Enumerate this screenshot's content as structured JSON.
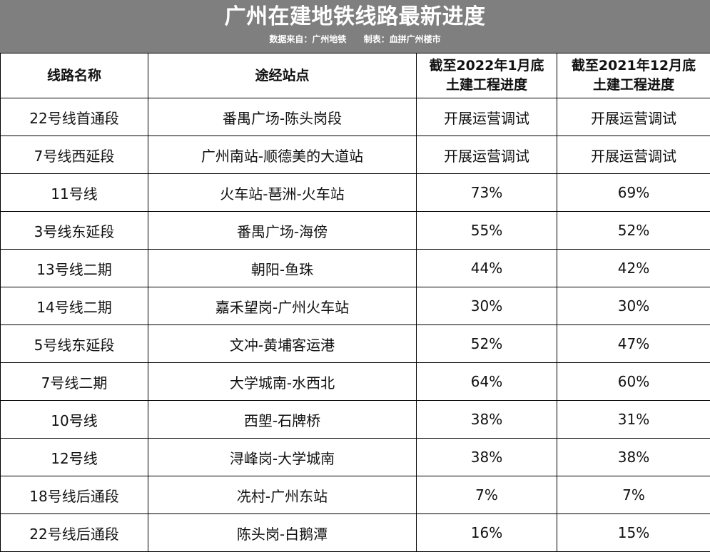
{
  "header": {
    "title": "广州在建地铁线路最新进度",
    "source": "数据来自：广州地铁",
    "author": "制表：血拼广州楼市"
  },
  "columns": {
    "line_name": "线路名称",
    "stations": "途经站点",
    "progress_2022_line1": "截至2022年1月底",
    "progress_2022_line2": "土建工程进度",
    "progress_2021_line1": "截至2021年12月底",
    "progress_2021_line2": "土建工程进度"
  },
  "rows": [
    {
      "line": "22号线首通段",
      "stations": "番禺广场-陈头岗段",
      "p2022": "开展运营调试",
      "p2021": "开展运营调试"
    },
    {
      "line": "7号线西延段",
      "stations": "广州南站-顺德美的大道站",
      "p2022": "开展运营调试",
      "p2021": "开展运营调试"
    },
    {
      "line": "11号线",
      "stations": "火车站-琶洲-火车站",
      "p2022": "73%",
      "p2021": "69%"
    },
    {
      "line": "3号线东延段",
      "stations": "番禺广场-海傍",
      "p2022": "55%",
      "p2021": "52%"
    },
    {
      "line": "13号线二期",
      "stations": "朝阳-鱼珠",
      "p2022": "44%",
      "p2021": "42%"
    },
    {
      "line": "14号线二期",
      "stations": "嘉禾望岗-广州火车站",
      "p2022": "30%",
      "p2021": "30%"
    },
    {
      "line": "5号线东延段",
      "stations": "文冲-黄埔客运港",
      "p2022": "52%",
      "p2021": "47%"
    },
    {
      "line": "7号线二期",
      "stations": "大学城南-水西北",
      "p2022": "64%",
      "p2021": "60%"
    },
    {
      "line": "10号线",
      "stations": "西塱-石牌桥",
      "p2022": "38%",
      "p2021": "31%"
    },
    {
      "line": "12号线",
      "stations": "浔峰岗-大学城南",
      "p2022": "38%",
      "p2021": "38%"
    },
    {
      "line": "18号线后通段",
      "stations": "冼村-广州东站",
      "p2022": "7%",
      "p2021": "7%"
    },
    {
      "line": "22号线后通段",
      "stations": "陈头岗-白鹅潭",
      "p2022": "16%",
      "p2021": "15%"
    }
  ]
}
